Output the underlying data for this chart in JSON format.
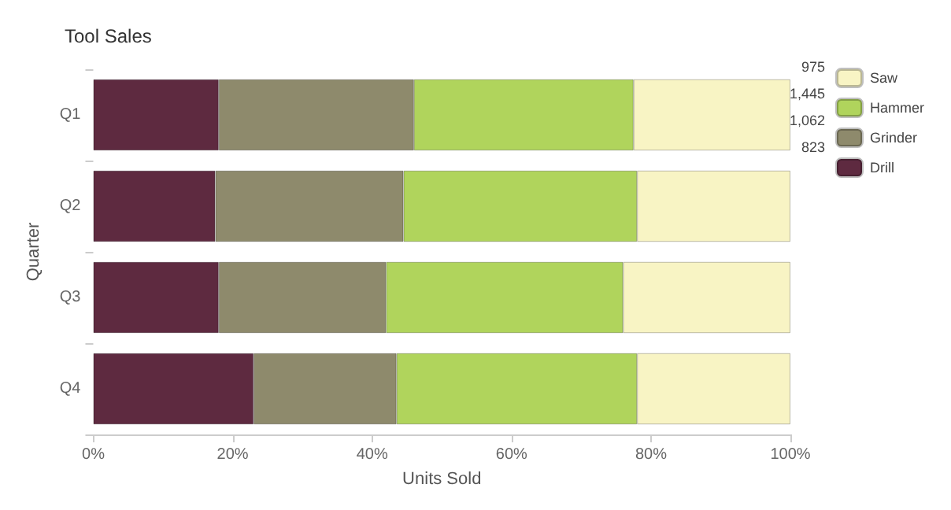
{
  "chart_data": {
    "type": "bar",
    "title": "Tool Sales",
    "xlabel": "Units Sold",
    "ylabel": "Quarter",
    "orientation": "horizontal",
    "stacked": true,
    "categories": [
      "Q1",
      "Q2",
      "Q3",
      "Q4"
    ],
    "series": [
      {
        "name": "Drill",
        "color": "#5e2a40",
        "values": [
          18,
          17.5,
          18,
          23
        ]
      },
      {
        "name": "Grinder",
        "color": "#8e8a6c",
        "values": [
          28,
          27,
          24,
          20.5
        ]
      },
      {
        "name": "Hammer",
        "color": "#b0d45c",
        "values": [
          31.5,
          33.5,
          34,
          34.5
        ]
      },
      {
        "name": "Saw",
        "color": "#f8f4c4",
        "values": [
          22.5,
          22,
          24,
          22
        ]
      }
    ],
    "xlim": [
      0,
      100
    ],
    "xticks": [
      {
        "value": 0,
        "label": "0%"
      },
      {
        "value": 20,
        "label": "20%"
      },
      {
        "value": 40,
        "label": "40%"
      },
      {
        "value": 60,
        "label": "60%"
      },
      {
        "value": 80,
        "label": "80%"
      },
      {
        "value": 100,
        "label": "100%"
      }
    ],
    "annotations": [
      "823",
      "1,062",
      "1,445",
      "975"
    ],
    "legend": "top right",
    "grid": false
  }
}
